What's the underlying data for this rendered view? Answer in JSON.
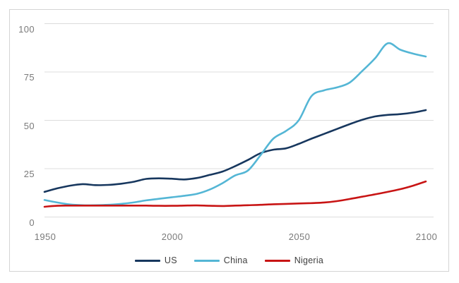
{
  "colors": {
    "background": "#ffffff",
    "frame_border": "#d4d4d4",
    "gridline": "#dcdcdc",
    "axis_text": "#7a7a7a",
    "legend_text": "#3f3f3f",
    "us_line": "#17375e",
    "china_line": "#54b6d5",
    "nigeria_line": "#c81414"
  },
  "chart_data": {
    "type": "line",
    "title": "",
    "xlabel": "",
    "ylabel": "",
    "xlim": [
      1950,
      2100
    ],
    "ylim": [
      0,
      100
    ],
    "grid": "horizontal-only",
    "legend_position": "bottom-center",
    "x_ticks": [
      "1950",
      "2000",
      "2050",
      "2100"
    ],
    "x_tick_years": [
      1950,
      2000,
      2050,
      2100
    ],
    "y_ticks": [
      "100",
      "75",
      "50",
      "25",
      "0"
    ],
    "y_tick_values": [
      100,
      75,
      50,
      25,
      0
    ],
    "x": [
      1950,
      1955,
      1960,
      1965,
      1970,
      1975,
      1980,
      1985,
      1990,
      1995,
      2000,
      2005,
      2010,
      2015,
      2020,
      2025,
      2030,
      2035,
      2040,
      2045,
      2050,
      2055,
      2060,
      2065,
      2070,
      2075,
      2080,
      2085,
      2090,
      2095,
      2100
    ],
    "series": [
      {
        "name": "US",
        "color": "#17375e",
        "values": [
          13.0,
          14.8,
          16.2,
          17.0,
          16.5,
          16.6,
          17.2,
          18.2,
          19.7,
          20.0,
          19.8,
          19.4,
          20.2,
          21.8,
          23.5,
          26.3,
          29.5,
          33.0,
          34.8,
          35.5,
          37.8,
          40.5,
          43.0,
          45.5,
          48.0,
          50.3,
          52.0,
          52.8,
          53.2,
          54.0,
          55.3
        ]
      },
      {
        "name": "China",
        "color": "#54b6d5",
        "values": [
          8.8,
          7.5,
          6.5,
          6.1,
          6.1,
          6.3,
          6.8,
          7.5,
          8.6,
          9.4,
          10.2,
          11.0,
          12.0,
          14.2,
          17.5,
          21.5,
          24.0,
          32.0,
          40.5,
          44.5,
          50.0,
          62.5,
          65.5,
          67.0,
          69.5,
          75.5,
          82.0,
          89.8,
          86.5,
          84.5,
          83.0
        ]
      },
      {
        "name": "Nigeria",
        "color": "#c81414",
        "values": [
          5.3,
          5.8,
          5.9,
          5.9,
          5.9,
          5.9,
          5.9,
          5.9,
          5.9,
          5.8,
          5.8,
          5.9,
          6.0,
          5.8,
          5.7,
          5.9,
          6.1,
          6.3,
          6.6,
          6.8,
          7.0,
          7.2,
          7.5,
          8.2,
          9.3,
          10.5,
          11.7,
          13.0,
          14.4,
          16.2,
          18.4
        ]
      }
    ]
  }
}
